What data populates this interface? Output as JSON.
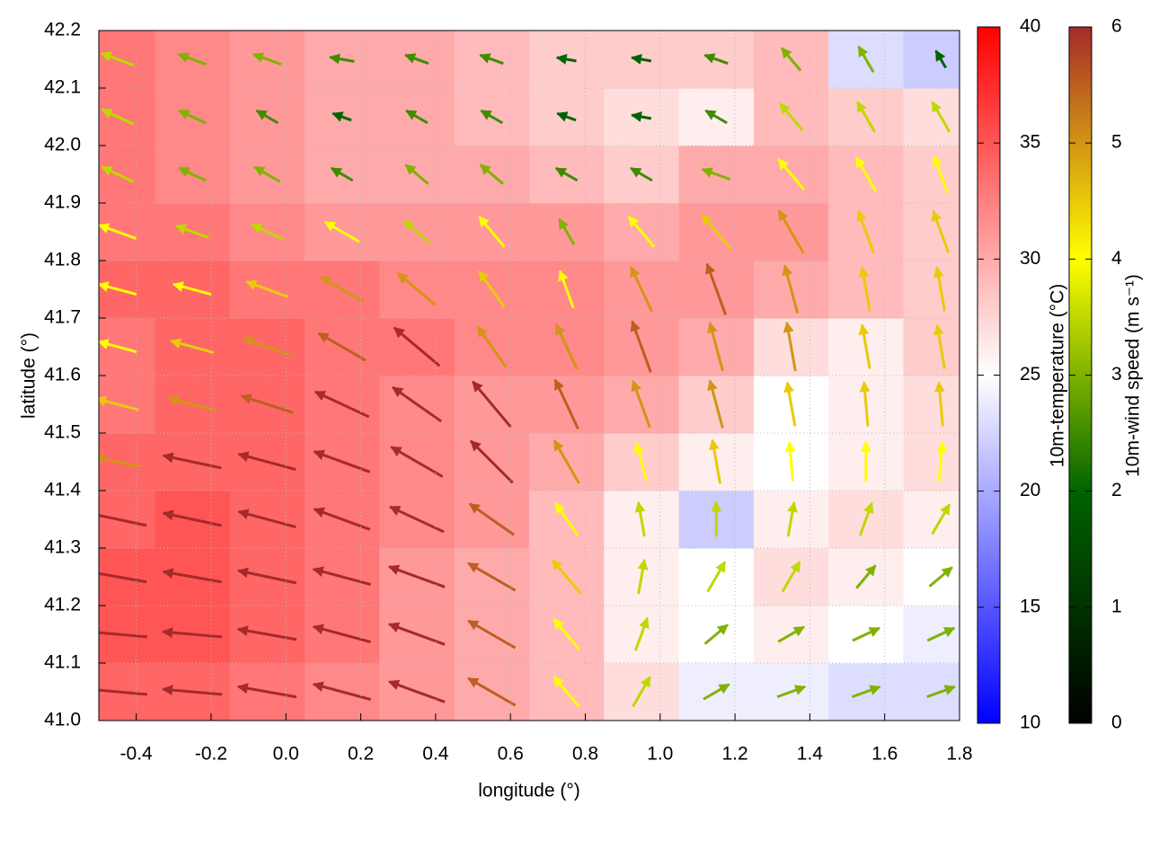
{
  "chart_data": {
    "type": "vector_field",
    "x_label": "longitude (°)",
    "y_label": "latitude (°)",
    "xlim": [
      -0.5,
      1.8
    ],
    "xticks": [
      -0.4,
      -0.2,
      {
        "value": 0,
        "label": "0.0"
      },
      0.2,
      0.4,
      0.6,
      0.8,
      {
        "value": 1,
        "label": "1.0"
      },
      1.2,
      1.4,
      1.6,
      1.8
    ],
    "ylim": [
      41.0,
      42.2
    ],
    "yticks": [
      {
        "value": 41,
        "label": "41.0"
      },
      41.1,
      41.2,
      41.3,
      41.4,
      41.5,
      41.6,
      41.7,
      41.8,
      41.9,
      {
        "value": 42,
        "label": "42.0"
      },
      42.1,
      42.2
    ],
    "grid": true,
    "x": [
      -0.45,
      -0.25,
      -0.05,
      0.15,
      0.35,
      0.55,
      0.75,
      0.95,
      1.15,
      1.35,
      1.55,
      1.75
    ],
    "y": [
      41.05,
      41.15,
      41.25,
      41.35,
      41.45,
      41.55,
      41.65,
      41.75,
      41.85,
      41.95,
      42.05,
      42.15
    ],
    "temperature": [
      [
        34,
        34,
        33,
        32,
        31,
        30,
        29,
        27,
        24,
        24,
        23,
        23
      ],
      [
        35,
        35,
        34,
        33,
        31,
        30,
        29,
        26,
        25,
        26,
        25,
        24
      ],
      [
        35,
        35,
        34,
        33,
        31,
        30,
        29,
        26,
        25,
        27,
        26,
        25
      ],
      [
        34,
        35,
        34,
        33,
        32,
        31,
        29,
        26,
        22,
        26,
        27,
        26
      ],
      [
        34,
        34,
        34,
        33,
        32,
        31,
        30,
        28,
        26,
        25,
        26,
        27
      ],
      [
        33,
        34,
        34,
        33,
        32,
        31,
        31,
        30,
        28,
        25,
        26,
        27
      ],
      [
        33,
        34,
        34,
        33,
        33,
        32,
        32,
        31,
        30,
        27,
        26,
        28
      ],
      [
        34,
        34,
        33,
        33,
        32,
        32,
        32,
        31,
        31,
        30,
        29,
        28
      ],
      [
        33,
        33,
        32,
        31,
        31,
        31,
        31,
        30,
        31,
        31,
        29,
        28
      ],
      [
        33,
        32,
        31,
        30,
        30,
        30,
        29,
        28,
        30,
        30,
        29,
        28
      ],
      [
        33,
        32,
        31,
        30,
        30,
        29,
        28,
        27,
        26,
        29,
        28,
        27
      ],
      [
        33,
        32,
        31,
        30,
        30,
        29,
        28,
        28,
        28,
        29,
        23,
        22
      ]
    ],
    "wind_speed": [
      [
        6,
        6,
        6,
        6,
        6,
        5.5,
        4,
        3.5,
        3,
        3,
        3,
        3
      ],
      [
        6,
        6,
        6,
        6,
        6,
        5.5,
        4,
        3.5,
        3,
        3,
        3,
        3
      ],
      [
        6,
        6,
        6,
        6,
        6,
        5.5,
        4.5,
        3.5,
        3.5,
        3.5,
        3,
        3
      ],
      [
        6,
        6,
        6,
        6,
        6,
        5.5,
        4,
        3.5,
        3.5,
        3.5,
        3.5,
        3.5
      ],
      [
        5,
        6,
        6,
        6,
        6,
        6,
        5,
        4,
        4.5,
        4,
        4,
        4
      ],
      [
        4.5,
        5,
        5.5,
        6,
        6,
        6,
        5.5,
        5,
        5,
        4.5,
        4.5,
        4.5
      ],
      [
        4,
        4.5,
        5,
        5.5,
        6,
        5,
        5,
        5.5,
        5,
        5,
        4.5,
        4.5
      ],
      [
        4,
        4,
        4.5,
        5,
        5,
        4.5,
        4,
        5,
        5.5,
        5,
        4.5,
        4.5
      ],
      [
        4,
        3.5,
        3.5,
        4,
        3.5,
        4,
        3,
        4,
        4.5,
        5,
        4.5,
        4.5
      ],
      [
        3.5,
        3,
        3,
        2.5,
        3,
        3,
        2.5,
        2.5,
        3,
        4,
        4,
        4
      ],
      [
        3.5,
        3,
        2.5,
        2,
        2.5,
        2.5,
        2,
        2,
        2.5,
        3.5,
        3.5,
        3.5
      ],
      [
        3.5,
        3,
        3,
        2.5,
        2.5,
        2.5,
        2,
        2,
        2.5,
        3,
        3,
        2
      ]
    ],
    "wind_direction": [
      [
        175,
        175,
        170,
        165,
        160,
        150,
        130,
        60,
        30,
        20,
        20,
        20
      ],
      [
        175,
        175,
        170,
        165,
        160,
        150,
        130,
        70,
        40,
        30,
        25,
        25
      ],
      [
        170,
        170,
        168,
        165,
        160,
        150,
        130,
        80,
        60,
        60,
        50,
        40
      ],
      [
        168,
        168,
        165,
        160,
        155,
        145,
        125,
        100,
        90,
        80,
        70,
        60
      ],
      [
        168,
        168,
        165,
        160,
        150,
        135,
        120,
        105,
        100,
        95,
        90,
        85
      ],
      [
        165,
        165,
        162,
        155,
        145,
        130,
        115,
        110,
        105,
        100,
        95,
        95
      ],
      [
        165,
        165,
        160,
        150,
        140,
        125,
        115,
        110,
        105,
        100,
        100,
        100
      ],
      [
        165,
        165,
        160,
        150,
        140,
        125,
        110,
        115,
        110,
        105,
        100,
        100
      ],
      [
        160,
        160,
        155,
        150,
        140,
        130,
        120,
        130,
        130,
        120,
        110,
        110
      ],
      [
        155,
        155,
        150,
        150,
        140,
        140,
        150,
        150,
        160,
        130,
        120,
        110
      ],
      [
        155,
        155,
        150,
        160,
        150,
        150,
        160,
        170,
        150,
        130,
        120,
        120
      ],
      [
        160,
        160,
        160,
        170,
        160,
        160,
        170,
        170,
        160,
        130,
        120,
        120
      ]
    ],
    "temperature_colorbar": {
      "label": "10m-temperature (°C)",
      "lim": [
        10,
        40
      ],
      "ticks": [
        10,
        15,
        20,
        25,
        30,
        35,
        40
      ],
      "colors": [
        "#0000ff",
        "#ffffff",
        "#ff0000"
      ]
    },
    "wind_colorbar": {
      "label": "10m-wind speed (m s⁻¹)",
      "lim": [
        0,
        6
      ],
      "ticks": [
        0,
        1,
        2,
        3,
        4,
        5,
        6
      ],
      "colors": [
        "#000000",
        "#006400",
        "#ffff00",
        "#a52a2a"
      ]
    }
  }
}
